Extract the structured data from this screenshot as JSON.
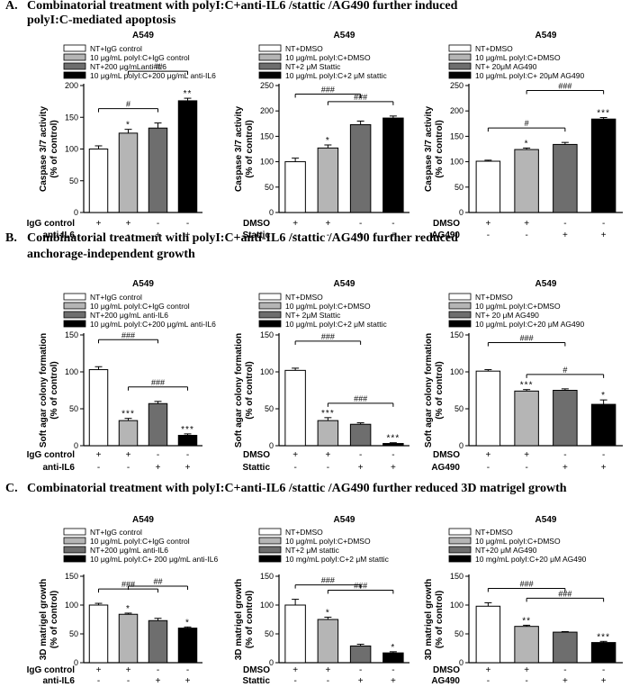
{
  "sections": [
    {
      "label": "A.",
      "lines": [
        "Combinatorial treatment with polyI:C+anti-IL6 /stattic /AG490 further induced",
        "polyI:C-mediated apoptosis"
      ]
    },
    {
      "label": "B.",
      "lines": [
        "Combinatorial treatment with polyI:C+anti-IL6 /stattic /AG490 further reduced",
        "anchorage-independent growth"
      ]
    },
    {
      "label": "C.",
      "lines": [
        "Combinatorial treatment with polyI:C+anti-IL6 /stattic /AG490 further reduced 3D matrigel growth"
      ]
    }
  ],
  "colors": {
    "bars": [
      "#ffffff",
      "#b5b5b5",
      "#6e6e6e",
      "#000000"
    ]
  },
  "chart_data": [
    {
      "id": "A1",
      "type": "bar",
      "title": "A549",
      "ylabel": [
        "Caspase 3/7 activity",
        "(% of control)"
      ],
      "ylim": [
        0,
        200
      ],
      "yticks": [
        0,
        50,
        100,
        150,
        200
      ],
      "legend": [
        "NT+IgG control",
        "10 μg/mL polyI:C+IgG control",
        "NT+200 μg/mLanti-IL6",
        "10 μg/mL polyI:C+200 μg/mL anti-IL6"
      ],
      "values": [
        100,
        125,
        133,
        176
      ],
      "errors": [
        5,
        6,
        8,
        4
      ],
      "sig": [
        "",
        "*",
        "",
        "**"
      ],
      "brackets": [
        {
          "from": 0,
          "to": 2,
          "label": "#"
        },
        {
          "from": 1,
          "to": 3,
          "label": "##"
        }
      ],
      "rows": [
        {
          "label": "IgG control",
          "signs": [
            "+",
            "+",
            "-",
            "-"
          ]
        },
        {
          "label": "anti-IL6",
          "signs": [
            "-",
            "-",
            "+",
            "+"
          ]
        }
      ]
    },
    {
      "id": "A2",
      "type": "bar",
      "title": "A549",
      "ylabel": [
        "Caspase 3/7 activity",
        "(% of control)"
      ],
      "ylim": [
        0,
        250
      ],
      "yticks": [
        0,
        50,
        100,
        150,
        200,
        250
      ],
      "legend": [
        "NT+DMSO",
        "10 μg/mL polyI:C+DMSO",
        "NT+2 μM Stattic",
        "10 μg/mL polyI:C+2 μM stattic"
      ],
      "values": [
        100,
        127,
        173,
        186
      ],
      "errors": [
        7,
        6,
        7,
        4
      ],
      "sig": [
        "",
        "*",
        "",
        ""
      ],
      "brackets": [
        {
          "from": 1,
          "to": 3,
          "label": "###"
        },
        {
          "from": 0,
          "to": 2,
          "label": "###"
        }
      ],
      "rows": [
        {
          "label": "DMSO",
          "signs": [
            "+",
            "+",
            "-",
            "-"
          ]
        },
        {
          "label": "Stattic",
          "signs": [
            "-",
            "-",
            "+",
            "+"
          ]
        }
      ]
    },
    {
      "id": "A3",
      "type": "bar",
      "title": "A549",
      "ylabel": [
        "Caspase 3/7 activity",
        "(% of control)"
      ],
      "ylim": [
        0,
        250
      ],
      "yticks": [
        0,
        50,
        100,
        150,
        200,
        250
      ],
      "legend": [
        "NT+DMSO",
        "10 μg/mL polyI:C+DMSO",
        "NT+ 20μM AG490",
        "10 μg/mL polyI:C+ 20μM AG490"
      ],
      "values": [
        101,
        124,
        134,
        184
      ],
      "errors": [
        2,
        3,
        4,
        3
      ],
      "sig": [
        "",
        "*",
        "",
        "***"
      ],
      "brackets": [
        {
          "from": 0,
          "to": 2,
          "label": "#"
        },
        {
          "from": 1,
          "to": 3,
          "label": "###"
        }
      ],
      "rows": [
        {
          "label": "DMSO",
          "signs": [
            "+",
            "+",
            "-",
            "-"
          ]
        },
        {
          "label": "AG490",
          "signs": [
            "-",
            "-",
            "+",
            "+"
          ]
        }
      ]
    },
    {
      "id": "B1",
      "type": "bar",
      "title": "A549",
      "ylabel": [
        "Soft agar colony formation",
        "(% of control)"
      ],
      "ylim": [
        0,
        150
      ],
      "yticks": [
        0,
        50,
        100,
        150
      ],
      "legend": [
        "NT+IgG control",
        "10 μg/mL polyI:C+IgG control",
        "NT+200 μg/mL anti-IL6",
        "10 μg/mL polyI:C+200 μg/mL anti-IL6"
      ],
      "values": [
        103,
        34,
        57,
        14
      ],
      "errors": [
        4,
        3,
        3,
        2
      ],
      "sig": [
        "",
        "***",
        "",
        "***"
      ],
      "brackets": [
        {
          "from": 1,
          "to": 3,
          "label": "###"
        },
        {
          "from": 0,
          "to": 2,
          "label": "###"
        }
      ],
      "rows": [
        {
          "label": "IgG control",
          "signs": [
            "+",
            "+",
            "-",
            "-"
          ]
        },
        {
          "label": "anti-IL6",
          "signs": [
            "-",
            "-",
            "+",
            "+"
          ]
        }
      ]
    },
    {
      "id": "B2",
      "type": "bar",
      "title": "A549",
      "ylabel": [
        "Soft agar colony formation",
        "(% of control)"
      ],
      "ylim": [
        0,
        150
      ],
      "yticks": [
        0,
        50,
        100,
        150
      ],
      "legend": [
        "NT+DMSO",
        "10 μg/mL polyI:C+DMSO",
        "NT+ 2μM Stattic",
        "10 μg/mL polyI:C+2 μM stattic"
      ],
      "values": [
        102,
        34,
        29,
        3
      ],
      "errors": [
        3,
        4,
        2,
        1
      ],
      "sig": [
        "",
        "***",
        "",
        "***"
      ],
      "brackets": [
        {
          "from": 1,
          "to": 3,
          "label": "###"
        },
        {
          "from": 0,
          "to": 2,
          "label": "###"
        }
      ],
      "rows": [
        {
          "label": "DMSO",
          "signs": [
            "+",
            "+",
            "-",
            "-"
          ]
        },
        {
          "label": "Stattic",
          "signs": [
            "-",
            "-",
            "+",
            "+"
          ]
        }
      ]
    },
    {
      "id": "B3",
      "type": "bar",
      "title": "A549",
      "ylabel": [
        "Soft agar colony formation",
        "(% of control)"
      ],
      "ylim": [
        0,
        150
      ],
      "yticks": [
        0,
        50,
        100,
        150
      ],
      "legend": [
        "NT+DMSO",
        "10 μg/mL polyI:C+DMSO",
        "NT+ 20 μM AG490",
        "10 μg/mL polyI:C+20 μM AG490"
      ],
      "values": [
        101,
        74,
        75,
        56
      ],
      "errors": [
        2,
        2,
        2,
        6
      ],
      "sig": [
        "",
        "***",
        "",
        "*"
      ],
      "brackets": [
        {
          "from": 1,
          "to": 3,
          "label": "#"
        },
        {
          "from": 0,
          "to": 2,
          "label": "###"
        }
      ],
      "rows": [
        {
          "label": "DMSO",
          "signs": [
            "+",
            "+",
            "-",
            "-"
          ]
        },
        {
          "label": "AG490",
          "signs": [
            "-",
            "-",
            "+",
            "+"
          ]
        }
      ]
    },
    {
      "id": "C1",
      "type": "bar",
      "title": "A549",
      "ylabel": [
        "3D matrigel growth",
        "(% of control)"
      ],
      "ylim": [
        0,
        150
      ],
      "yticks": [
        0,
        50,
        100,
        150
      ],
      "legend": [
        "NT+IgG control",
        "10 μg/mL polyI:C+IgG control",
        "NT+200 μg/mL anti-IL6",
        "10 μg/mL polyI:C+ 200 μg/mL anti-IL6"
      ],
      "values": [
        100,
        84,
        73,
        60
      ],
      "errors": [
        3,
        2,
        4,
        2
      ],
      "sig": [
        "",
        "*",
        "",
        "*"
      ],
      "brackets": [
        {
          "from": 0,
          "to": 2,
          "label": "###"
        },
        {
          "from": 1,
          "to": 3,
          "label": "##"
        }
      ],
      "rows": [
        {
          "label": "IgG control",
          "signs": [
            "+",
            "+",
            "-",
            "-"
          ]
        },
        {
          "label": "anti-IL6",
          "signs": [
            "-",
            "-",
            "+",
            "+"
          ]
        }
      ]
    },
    {
      "id": "C2",
      "type": "bar",
      "title": "A549",
      "ylabel": [
        "3D matrigel growth",
        "(% of control)"
      ],
      "ylim": [
        0,
        150
      ],
      "yticks": [
        0,
        50,
        100,
        150
      ],
      "legend": [
        "NT+DMSO",
        "10 μg/mL polyI:C+DMSO",
        "NT+2 μM stattic",
        "10 mg/mL polyI:C+2 μM stattic"
      ],
      "values": [
        100,
        75,
        29,
        17
      ],
      "errors": [
        10,
        4,
        3,
        2
      ],
      "sig": [
        "",
        "*",
        "",
        "*"
      ],
      "brackets": [
        {
          "from": 0,
          "to": 2,
          "label": "###"
        },
        {
          "from": 1,
          "to": 3,
          "label": "###"
        }
      ],
      "rows": [
        {
          "label": "DMSO",
          "signs": [
            "+",
            "+",
            "-",
            "-"
          ]
        },
        {
          "label": "Stattic",
          "signs": [
            "-",
            "-",
            "+",
            "+"
          ]
        }
      ]
    },
    {
      "id": "C3",
      "type": "bar",
      "title": "A549",
      "ylabel": [
        "3D matrigel growth",
        "(% of control)"
      ],
      "ylim": [
        0,
        150
      ],
      "yticks": [
        0,
        50,
        100,
        150
      ],
      "legend": [
        "NT+DMSO",
        "10 μg/mL polyI:C+DMSO",
        "NT+20 μM AG490",
        "10 mg/mL polyI:C+20 μM AG490"
      ],
      "values": [
        98,
        63,
        53,
        35
      ],
      "errors": [
        6,
        2,
        1,
        2
      ],
      "sig": [
        "",
        "**",
        "",
        "***"
      ],
      "brackets": [
        {
          "from": 0,
          "to": 2,
          "label": "###"
        },
        {
          "from": 1,
          "to": 3,
          "label": "###"
        }
      ],
      "rows": [
        {
          "label": "DMSO",
          "signs": [
            "+",
            "+",
            "-",
            "-"
          ]
        },
        {
          "label": "AG490",
          "signs": [
            "-",
            "-",
            "+",
            "+"
          ]
        }
      ]
    }
  ]
}
